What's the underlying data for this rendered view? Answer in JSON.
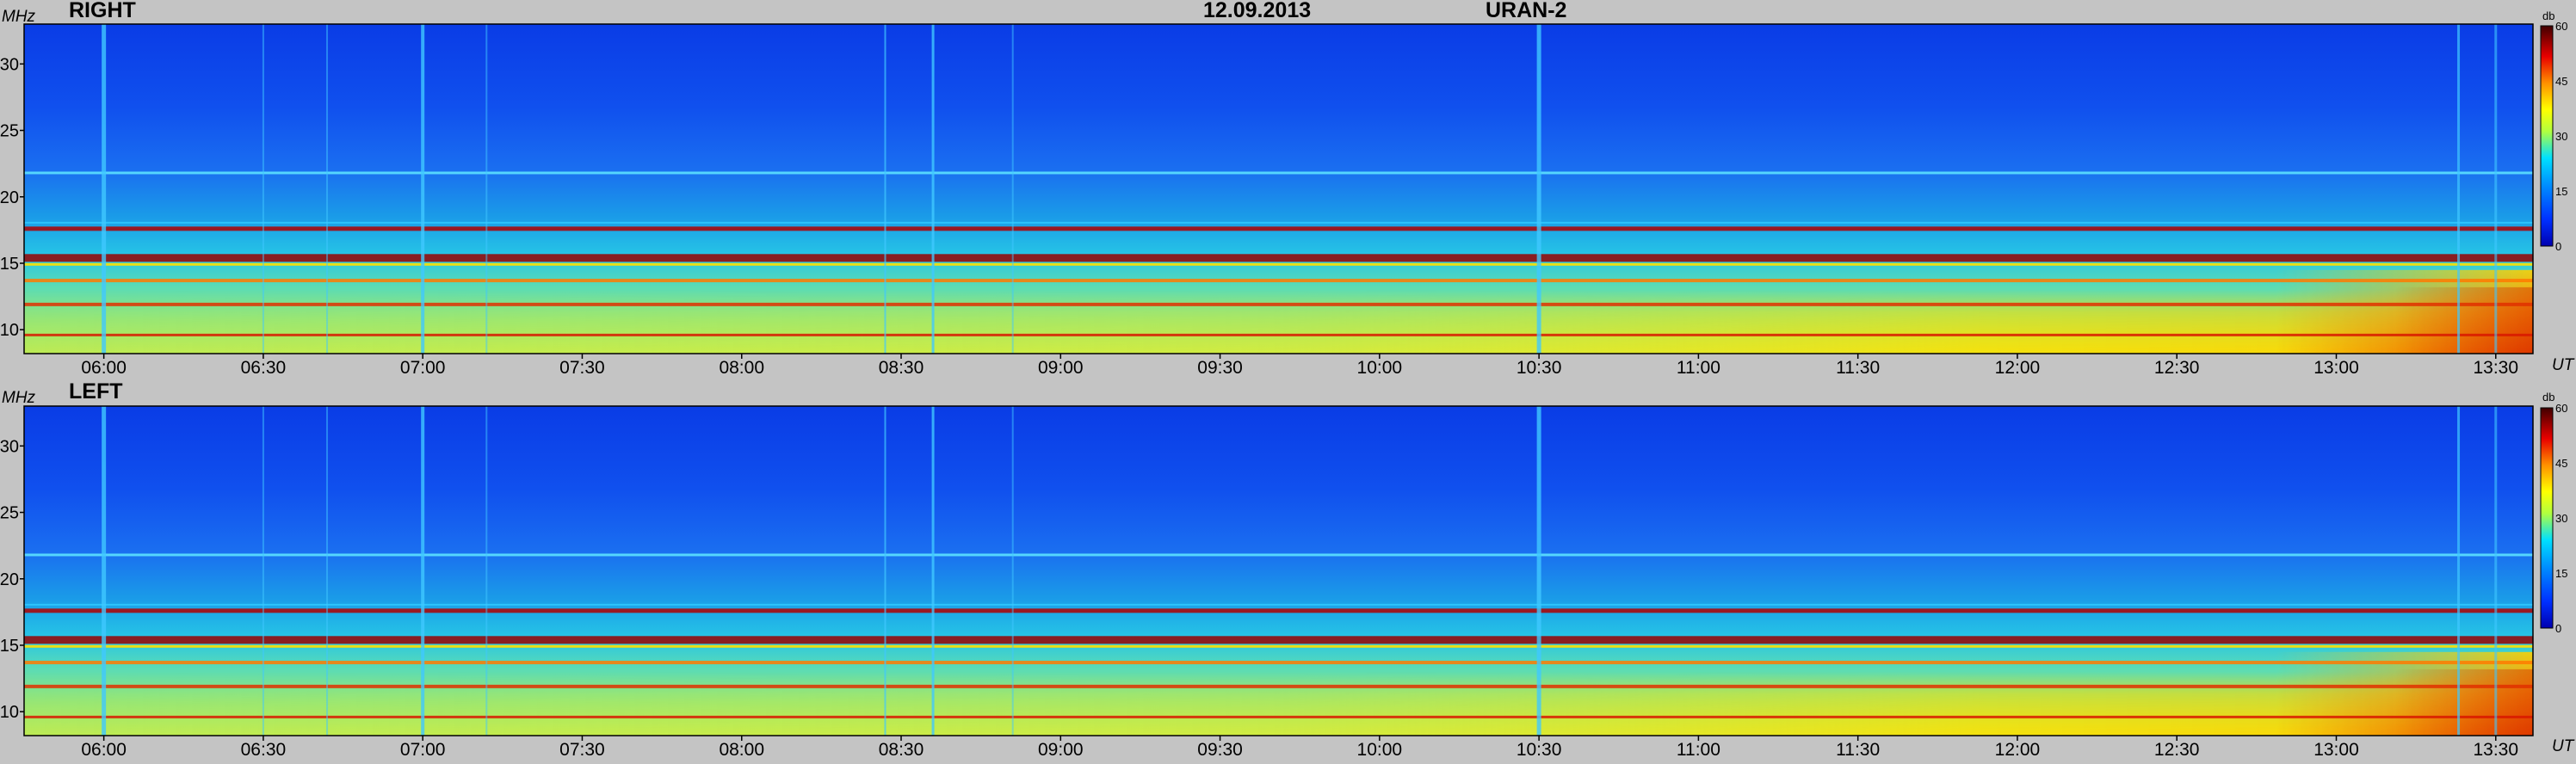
{
  "header": {
    "date": "12.09.2013",
    "instrument": "URAN-2"
  },
  "chart_data": [
    {
      "type": "heatmap",
      "panel_label": "RIGHT",
      "ylabel": "MHz",
      "xlabel": "UT",
      "x_ticks": [
        "06:00",
        "06:30",
        "07:00",
        "07:30",
        "08:00",
        "08:30",
        "09:00",
        "09:30",
        "10:00",
        "10:30",
        "11:00",
        "11:30",
        "12:00",
        "12:30",
        "13:00",
        "13:30"
      ],
      "x_range": [
        "05:45",
        "13:37"
      ],
      "y_ticks": [
        10,
        15,
        20,
        25,
        30
      ],
      "y_range": [
        8.2,
        33
      ],
      "colorbar": {
        "label": "db",
        "ticks": [
          0,
          15,
          30,
          45,
          60
        ],
        "range": [
          0,
          60
        ]
      },
      "features": {
        "interference_bands_mhz": [
          9.6,
          11.9,
          13.7,
          15.4,
          17.6,
          21.8
        ],
        "strong_emission": {
          "time_start": "12:00",
          "time_end": "13:37",
          "freq_max_mhz": 14.5
        }
      }
    },
    {
      "type": "heatmap",
      "panel_label": "LEFT",
      "ylabel": "MHz",
      "xlabel": "UT",
      "x_ticks": [
        "06:00",
        "06:30",
        "07:00",
        "07:30",
        "08:00",
        "08:30",
        "09:00",
        "09:30",
        "10:00",
        "10:30",
        "11:00",
        "11:30",
        "12:00",
        "12:30",
        "13:00",
        "13:30"
      ],
      "x_range": [
        "05:45",
        "13:37"
      ],
      "y_ticks": [
        10,
        15,
        20,
        25,
        30
      ],
      "y_range": [
        8.2,
        33
      ],
      "colorbar": {
        "label": "db",
        "ticks": [
          0,
          15,
          30,
          45,
          60
        ],
        "range": [
          0,
          60
        ]
      },
      "features": {
        "interference_bands_mhz": [
          9.6,
          11.9,
          13.7,
          15.4,
          17.6,
          21.8
        ],
        "strong_emission": {
          "time_start": "12:00",
          "time_end": "13:37",
          "freq_max_mhz": 14.5
        }
      }
    }
  ]
}
